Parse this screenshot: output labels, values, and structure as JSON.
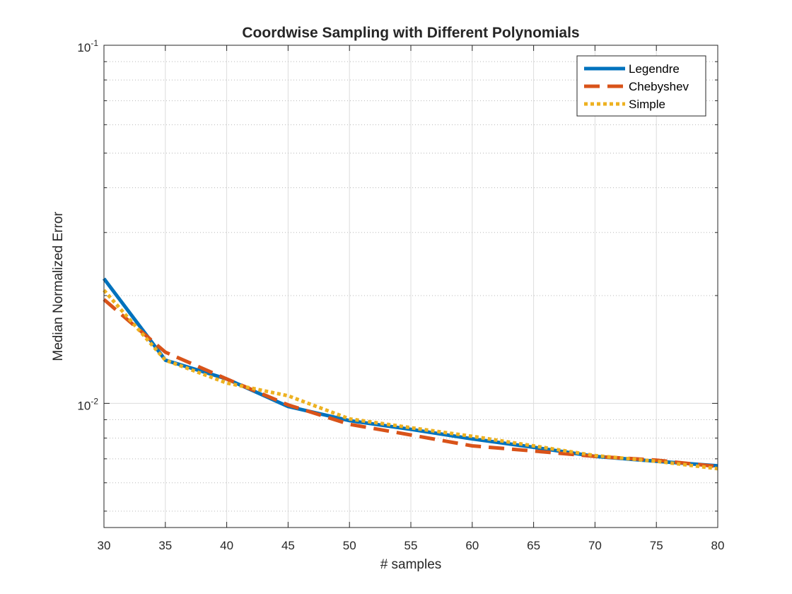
{
  "chart_data": {
    "type": "line",
    "title": "Coordwise Sampling with Different Polynomials",
    "xlabel": "# samples",
    "ylabel": "Median Normalized Error",
    "xlim": [
      30,
      80
    ],
    "ylim": [
      0.0045,
      0.1
    ],
    "yscale": "log",
    "grid": true,
    "legend_position": "top-right",
    "x_ticks": [
      "30",
      "35",
      "40",
      "45",
      "50",
      "55",
      "60",
      "65",
      "70",
      "75",
      "80"
    ],
    "y_ticks": [
      {
        "base": "10",
        "exp": "-2",
        "value": 0.01
      },
      {
        "base": "10",
        "exp": "-1",
        "value": 0.1
      }
    ],
    "series": [
      {
        "name": "Legendre",
        "color": "#0072bd",
        "style": "solid",
        "x": [
          30,
          35,
          40,
          45,
          50,
          55,
          60,
          65,
          70,
          75,
          80
        ],
        "y": [
          0.0223,
          0.0132,
          0.0117,
          0.0098,
          0.00895,
          0.00846,
          0.00796,
          0.00754,
          0.00711,
          0.00689,
          0.00669
        ]
      },
      {
        "name": "Chebyshev",
        "color": "#d95319",
        "style": "dashed",
        "x": [
          30,
          35,
          40,
          45,
          50,
          55,
          60,
          65,
          70,
          75,
          80
        ],
        "y": [
          0.0195,
          0.0139,
          0.0117,
          0.0099,
          0.00874,
          0.00816,
          0.00761,
          0.00736,
          0.00711,
          0.00694,
          0.00666
        ]
      },
      {
        "name": "Simple",
        "color": "#edb120",
        "style": "dotted",
        "x": [
          30,
          35,
          40,
          45,
          50,
          55,
          60,
          65,
          70,
          75,
          80
        ],
        "y": [
          0.0207,
          0.0132,
          0.0114,
          0.0105,
          0.00905,
          0.00855,
          0.00809,
          0.00761,
          0.00715,
          0.00689,
          0.00657
        ]
      }
    ]
  }
}
